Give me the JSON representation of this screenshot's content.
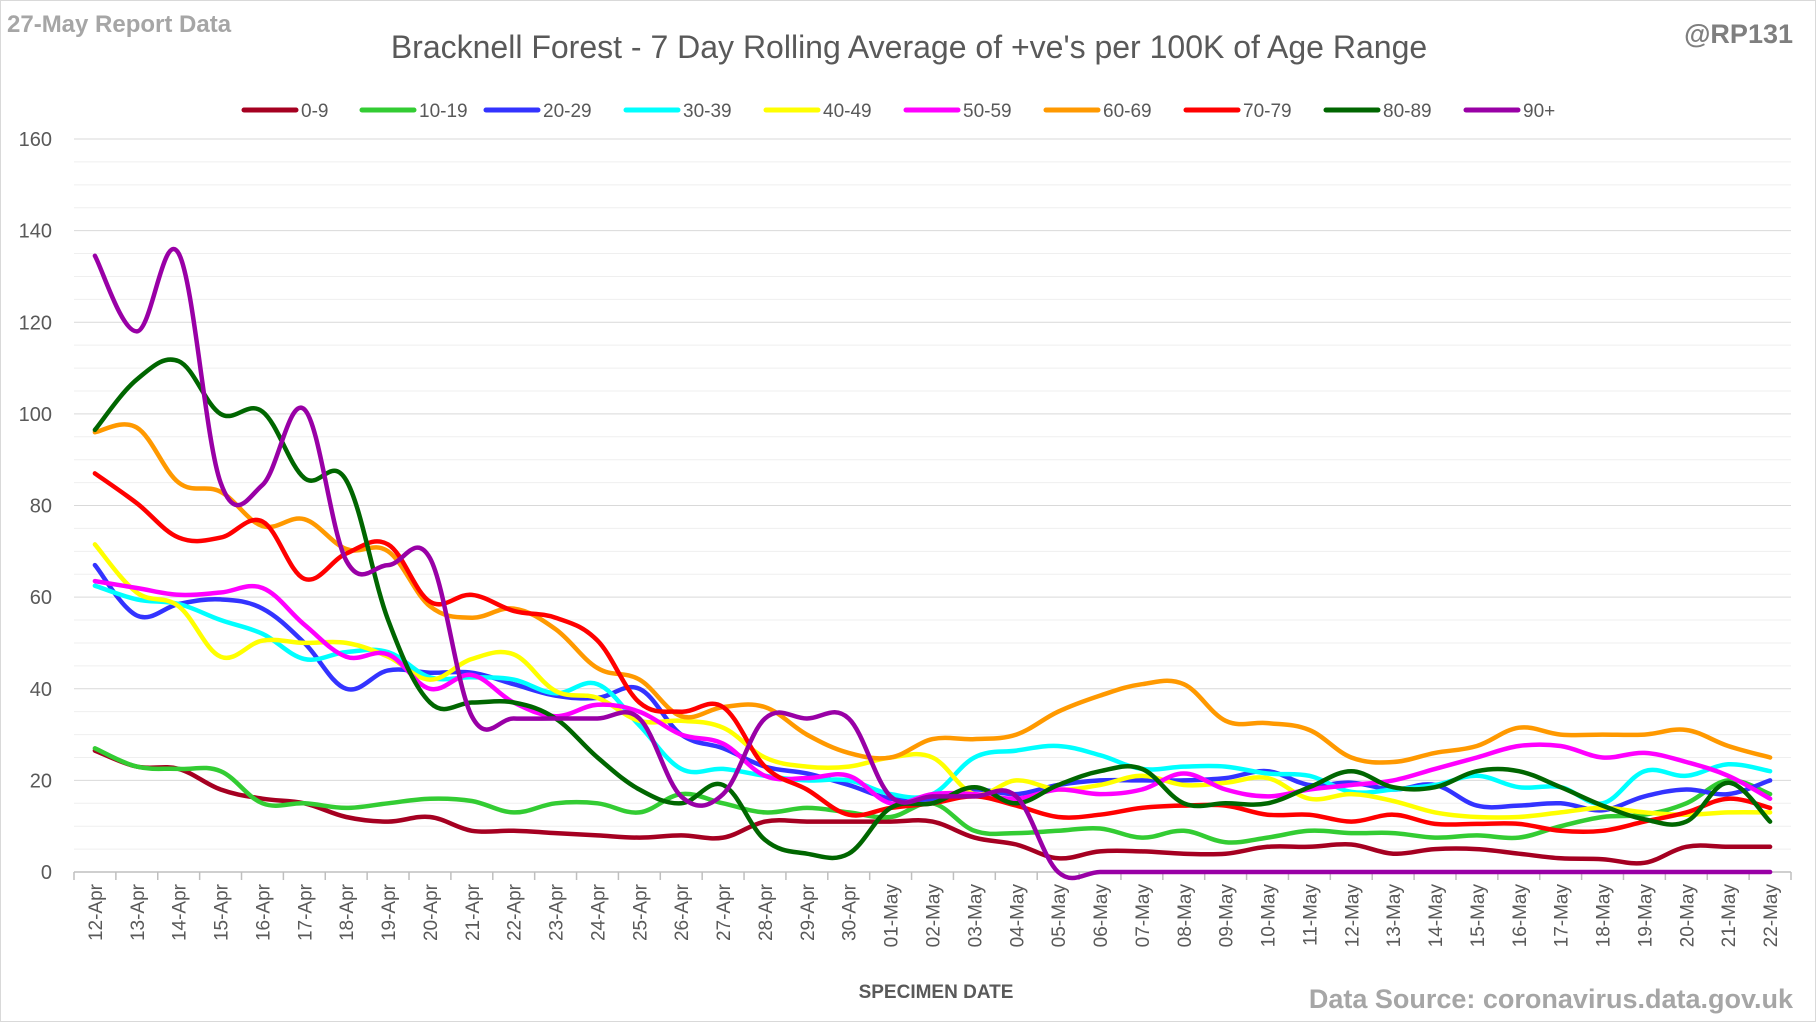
{
  "report_label": "27-May Report Data",
  "handle": "@RP131",
  "source": "Data Source: coronavirus.data.gov.uk",
  "chart_data": {
    "type": "line",
    "title": "Bracknell Forest - 7 Day Rolling Average of +ve's per 100K of Age Range",
    "xlabel": "SPECIMEN DATE",
    "ylabel": "",
    "ylim": [
      0,
      160
    ],
    "yticks": [
      0,
      20,
      40,
      60,
      80,
      100,
      120,
      140,
      160
    ],
    "grid": true,
    "legend_position": "top",
    "categories": [
      "12-Apr",
      "13-Apr",
      "14-Apr",
      "15-Apr",
      "16-Apr",
      "17-Apr",
      "18-Apr",
      "19-Apr",
      "20-Apr",
      "21-Apr",
      "22-Apr",
      "23-Apr",
      "24-Apr",
      "25-Apr",
      "26-Apr",
      "27-Apr",
      "28-Apr",
      "29-Apr",
      "30-Apr",
      "01-May",
      "02-May",
      "03-May",
      "04-May",
      "05-May",
      "06-May",
      "07-May",
      "08-May",
      "09-May",
      "10-May",
      "11-May",
      "12-May",
      "13-May",
      "14-May",
      "15-May",
      "16-May",
      "17-May",
      "18-May",
      "19-May",
      "20-May",
      "21-May",
      "22-May"
    ],
    "series": [
      {
        "name": "0-9",
        "color": "#a50021",
        "values": [
          26.5,
          23,
          22.5,
          18,
          16,
          15,
          12,
          11,
          12,
          9,
          9,
          8.5,
          8,
          7.5,
          8,
          7.5,
          11,
          11,
          11,
          11,
          11,
          7.5,
          6,
          3,
          4.5,
          4.5,
          4,
          4,
          5.5,
          5.5,
          6,
          4,
          5,
          5,
          4,
          3,
          2.8,
          2,
          5.5,
          5.5,
          5.5
        ]
      },
      {
        "name": "10-19",
        "color": "#33cc33",
        "values": [
          27,
          23,
          22.5,
          22,
          15,
          15,
          14,
          15,
          16,
          15.5,
          13,
          15,
          15,
          13,
          17,
          15,
          13,
          14,
          13,
          12,
          15,
          9,
          8.5,
          9,
          9.5,
          7.5,
          9,
          6.5,
          7.5,
          9,
          8.5,
          8.5,
          7.5,
          8,
          7.5,
          10,
          12,
          12.5,
          15,
          20,
          17
        ]
      },
      {
        "name": "20-29",
        "color": "#3333ff",
        "values": [
          67,
          56,
          58.5,
          59.5,
          57.5,
          50,
          40,
          44,
          43.5,
          43.5,
          41,
          38.5,
          38,
          40,
          30,
          27,
          23,
          21.5,
          19,
          16,
          16,
          18,
          17,
          19,
          20,
          20,
          20,
          20.5,
          22,
          19,
          19.5,
          18,
          19,
          14.5,
          14.5,
          15,
          13.5,
          16.5,
          18,
          17,
          20
        ]
      },
      {
        "name": "30-39",
        "color": "#00ffff",
        "values": [
          62.5,
          59.5,
          58.5,
          55,
          52,
          46.5,
          48,
          48,
          42.5,
          42.5,
          42,
          39,
          41,
          32,
          22.5,
          22.5,
          21,
          20,
          20,
          17,
          17,
          25,
          26.5,
          27.5,
          25.5,
          22.5,
          23,
          23,
          21.5,
          21,
          17.5,
          18,
          19,
          21,
          18.5,
          18.5,
          15,
          22,
          21,
          23.5,
          22
        ]
      },
      {
        "name": "40-49",
        "color": "#ffff00",
        "values": [
          71.5,
          61,
          58,
          47,
          50.5,
          50,
          50,
          47,
          42,
          46.5,
          47.5,
          39.5,
          38,
          33,
          33,
          31.5,
          25,
          23,
          23,
          25,
          25,
          17,
          20,
          18,
          19,
          21,
          19,
          19.5,
          20.5,
          16,
          17,
          15.5,
          13,
          12,
          12,
          13,
          14,
          13,
          12.5,
          13,
          13
        ]
      },
      {
        "name": "50-59",
        "color": "#ff00ff",
        "values": [
          63.5,
          62,
          60.5,
          61,
          62,
          54,
          47,
          47.5,
          40,
          43,
          37,
          34,
          36.5,
          35,
          30,
          28,
          21,
          20.5,
          21,
          15,
          17,
          17,
          16,
          18,
          17,
          18,
          21.5,
          18,
          16.5,
          18,
          19,
          20,
          22.5,
          25,
          27.5,
          27.5,
          25,
          26,
          24,
          21,
          16
        ]
      },
      {
        "name": "60-69",
        "color": "#ff9900",
        "values": [
          96,
          97,
          85,
          83,
          75.5,
          77,
          70.5,
          70,
          58,
          55.5,
          57.5,
          53,
          44.5,
          42,
          34,
          36,
          36,
          30,
          26,
          25,
          29,
          29,
          30,
          35,
          38.5,
          41,
          41,
          33,
          32.5,
          31,
          25,
          24,
          26,
          27.5,
          31.5,
          30,
          30,
          30,
          31,
          27.5,
          25
        ]
      },
      {
        "name": "70-79",
        "color": "#ff0000",
        "values": [
          87,
          80.5,
          73,
          73,
          76.5,
          64,
          69.5,
          71.5,
          59,
          60.5,
          57,
          55.5,
          50.5,
          37,
          35,
          36,
          23,
          18,
          12.5,
          14,
          15,
          16.5,
          14.5,
          12,
          12.5,
          14,
          14.5,
          14.5,
          12.5,
          12.5,
          11,
          12.5,
          10.5,
          10.5,
          10.5,
          9,
          9,
          11,
          13,
          16,
          14
        ]
      },
      {
        "name": "80-89",
        "color": "#006600",
        "values": [
          96.5,
          107.5,
          111.5,
          100,
          100.5,
          86,
          85.5,
          55,
          37,
          37,
          37,
          33.5,
          25,
          18,
          15,
          19,
          7,
          4,
          4,
          14,
          15,
          18.5,
          15,
          19,
          22,
          22.5,
          15,
          15,
          15,
          18.5,
          22,
          18.5,
          18.5,
          22,
          22,
          18.5,
          14.5,
          11.5,
          11,
          19.5,
          11
        ]
      },
      {
        "name": "90+",
        "color": "#9900a6",
        "values": [
          134.5,
          118,
          135,
          85,
          84.5,
          101,
          68,
          67,
          68.5,
          34,
          33.5,
          33.5,
          33.5,
          33.5,
          16.5,
          17,
          33.5,
          33.5,
          33.5,
          16.5,
          16.5,
          16.5,
          16.5,
          0,
          0,
          0,
          0,
          0,
          0,
          0,
          0,
          0,
          0,
          0,
          0,
          0,
          0,
          0,
          0,
          0,
          0
        ]
      }
    ]
  }
}
